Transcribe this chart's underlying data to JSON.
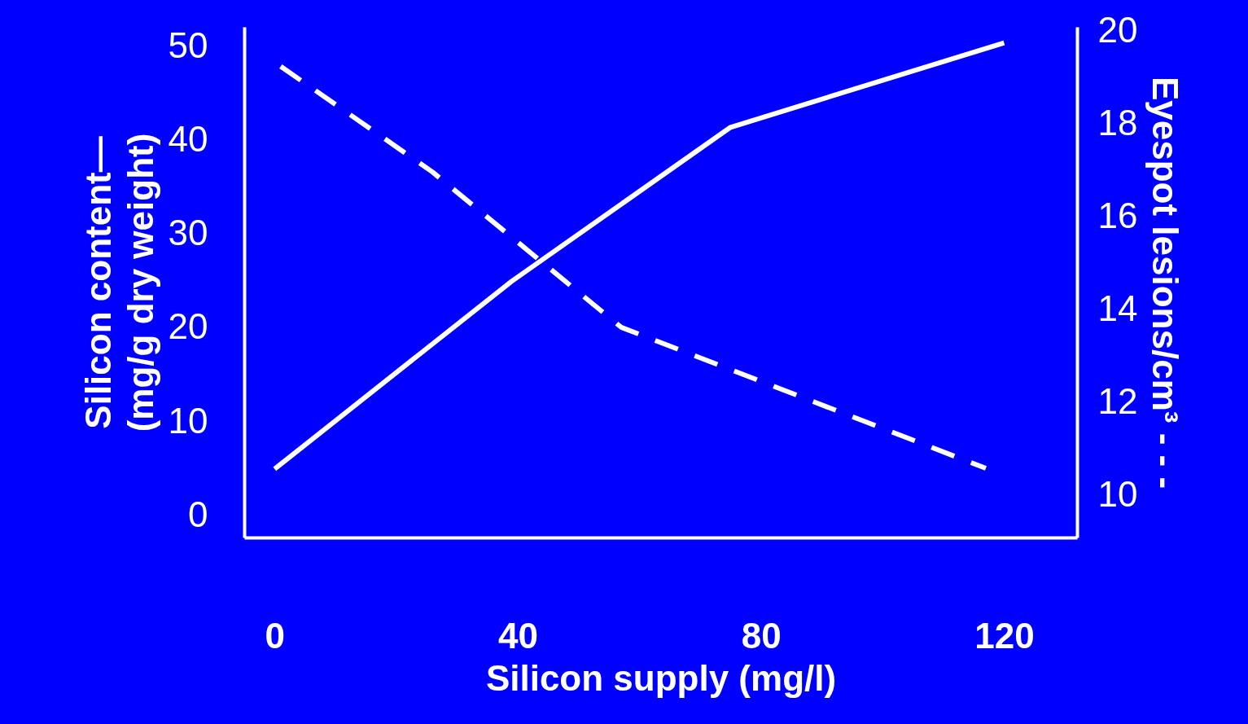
{
  "chart_data": {
    "type": "line",
    "xlabel": "Silicon supply (mg/l)",
    "ylabel": "Silicon content—\n(mg/g dry weight)",
    "y2label": "Eyespot lesions/cm³ - - -",
    "xlim": [
      -5,
      132
    ],
    "xticks": [
      0,
      40,
      80,
      120
    ],
    "ylim": [
      -2.3,
      52.1
    ],
    "yticks": [
      0,
      10,
      20,
      30,
      40,
      50
    ],
    "y2lim": [
      9.1,
      20.1
    ],
    "y2ticks": [
      10,
      12,
      14,
      16,
      18,
      20
    ],
    "grid": false,
    "marker": "none",
    "series": [
      {
        "color": "#ffffff",
        "line_style": "solid",
        "x": [
          0,
          39,
          75,
          120
        ],
        "values": [
          5.0,
          25.0,
          41.4,
          50.4
        ]
      },
      {
        "color": "#ffffff",
        "line_style": "dashed",
        "axis": "y2",
        "x": [
          1,
          26,
          57,
          117
        ],
        "values": [
          19.25,
          16.97,
          13.63,
          10.59
        ]
      }
    ]
  }
}
